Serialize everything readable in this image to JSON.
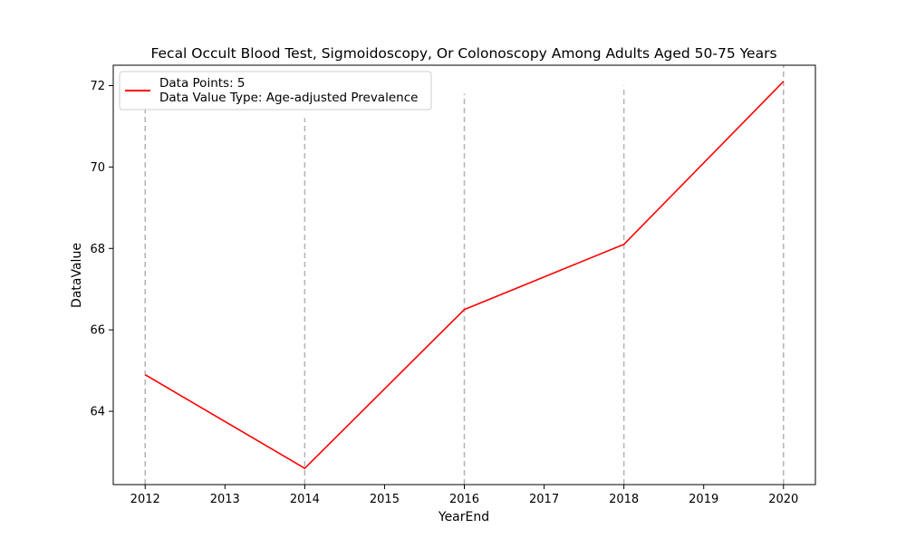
{
  "chart_data": {
    "type": "line",
    "title": "Fecal Occult Blood Test, Sigmoidoscopy, Or Colonoscopy Among Adults Aged 50-75 Years",
    "xlabel": "YearEnd",
    "ylabel": "DataValue",
    "xlim": [
      2011.6,
      2020.4
    ],
    "ylim": [
      62.2,
      72.5
    ],
    "x_ticks": [
      2012,
      2013,
      2014,
      2015,
      2016,
      2017,
      2018,
      2019,
      2020
    ],
    "y_ticks": [
      64,
      66,
      68,
      70,
      72
    ],
    "grid": "vertical dashed lines at data points",
    "legend_position": "upper-left",
    "series": [
      {
        "color": "#ff0000",
        "x": [
          2012,
          2014,
          2016,
          2018,
          2020
        ],
        "y": [
          64.9,
          62.6,
          66.5,
          68.1,
          72.1
        ]
      }
    ],
    "vlines": [
      {
        "x": 2012,
        "ymax": 71.5
      },
      {
        "x": 2014,
        "ymax": 71.2
      },
      {
        "x": 2016,
        "ymax": 71.8
      },
      {
        "x": 2018,
        "ymax": 72.0
      },
      {
        "x": 2020,
        "ymax": 72.6
      }
    ],
    "legend": {
      "line1": "Data Points: 5",
      "line2": "Data Value Type: Age-adjusted Prevalence"
    }
  }
}
